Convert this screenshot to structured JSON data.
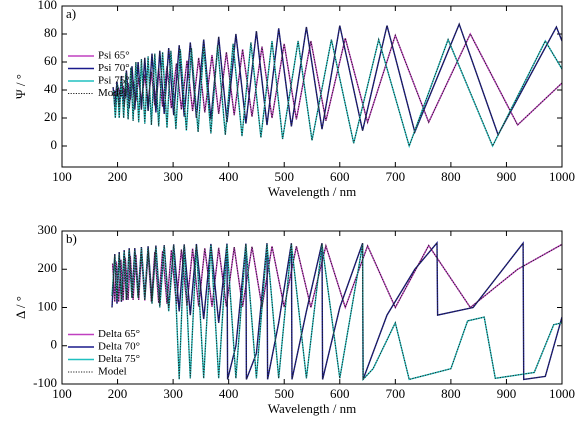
{
  "chart_data": [
    {
      "type": "line",
      "panel_label": "a)",
      "xlabel": "Wavelength / nm",
      "ylabel": "Ψ / °",
      "xlim": [
        100,
        1000
      ],
      "xticks": [
        100,
        200,
        300,
        400,
        500,
        600,
        700,
        800,
        900,
        1000
      ],
      "ylim": [
        -15,
        100
      ],
      "yticks": [
        0,
        20,
        40,
        60,
        80,
        100
      ],
      "legend": "upper left",
      "series": [
        {
          "name": "Psi 65°",
          "color": "#c040c0",
          "x": [
            191,
            195,
            198,
            202,
            206,
            210,
            214,
            219,
            223,
            228,
            233,
            238,
            243,
            249,
            255,
            261,
            267,
            274,
            281,
            289,
            297,
            306,
            315,
            325,
            335,
            346,
            357,
            370,
            382,
            396,
            410,
            425,
            442,
            460,
            478,
            500,
            522,
            548,
            575,
            610,
            650,
            700,
            760,
            835,
            920,
            1000
          ],
          "values": [
            36,
            39,
            36,
            41,
            35,
            43,
            34,
            45,
            33,
            47,
            32,
            49,
            31,
            51,
            30,
            53,
            29,
            55,
            28,
            57,
            27,
            59,
            26,
            61,
            25,
            63,
            24,
            65,
            23,
            67,
            22,
            69,
            21,
            71,
            20,
            73,
            19,
            75,
            18,
            77,
            17,
            79,
            17,
            80,
            15,
            45
          ]
        },
        {
          "name": "Psi 70°",
          "color": "#1a1a8c",
          "x": [
            192,
            195,
            199,
            203,
            207,
            212,
            216,
            221,
            226,
            231,
            237,
            243,
            249,
            255,
            262,
            269,
            276,
            284,
            292,
            301,
            311,
            320,
            331,
            342,
            355,
            368,
            382,
            397,
            413,
            431,
            450,
            469,
            490,
            513,
            540,
            568,
            600,
            641,
            685,
            735,
            815,
            885,
            990,
            1000
          ],
          "values": [
            42,
            28,
            46,
            28,
            50,
            28,
            54,
            27,
            57,
            26,
            60,
            26,
            63,
            25,
            66,
            24,
            68,
            23,
            70,
            22,
            72,
            21,
            74,
            20,
            76,
            19,
            78,
            17,
            80,
            16,
            82,
            15,
            84,
            14,
            85,
            12,
            86,
            11,
            86,
            10,
            87,
            8,
            85,
            75
          ]
        },
        {
          "name": "Psi 75°",
          "color": "#20c0c0",
          "x": [
            193,
            196,
            200,
            203,
            207,
            211,
            215,
            219,
            224,
            228,
            233,
            238,
            243,
            249,
            255,
            261,
            267,
            274,
            281,
            289,
            296,
            305,
            313,
            324,
            333,
            345,
            355,
            368,
            380,
            394,
            408,
            424,
            440,
            458,
            478,
            497,
            525,
            550,
            585,
            625,
            670,
            725,
            795,
            875,
            970,
            1000
          ],
          "values": [
            40,
            20,
            44,
            20,
            48,
            20,
            52,
            19,
            56,
            18,
            60,
            17,
            62,
            16,
            64,
            15,
            66,
            14,
            67,
            13,
            68,
            12,
            69,
            11,
            70,
            10,
            71,
            9,
            72,
            8,
            73,
            7,
            74,
            6,
            75,
            5,
            75,
            4,
            76,
            2,
            76,
            0,
            76,
            0,
            75,
            55
          ]
        },
        {
          "name": "Model",
          "color": "#222222",
          "style": "dotted"
        }
      ]
    },
    {
      "type": "line",
      "panel_label": "b)",
      "xlabel": "Wavelength / nm",
      "ylabel": "Δ / °",
      "xlim": [
        100,
        1000
      ],
      "xticks": [
        100,
        200,
        300,
        400,
        500,
        600,
        700,
        800,
        900,
        1000
      ],
      "ylim": [
        -100,
        300
      ],
      "yticks": [
        -100,
        0,
        100,
        200,
        300
      ],
      "legend": "lower left",
      "series": [
        {
          "name": "Delta 65°",
          "color": "#c040c0",
          "x": [
            191,
            195,
            198,
            202,
            206,
            210,
            214,
            219,
            223,
            228,
            233,
            238,
            243,
            249,
            255,
            261,
            267,
            274,
            281,
            289,
            297,
            306,
            315,
            325,
            335,
            346,
            357,
            370,
            382,
            396,
            410,
            425,
            442,
            460,
            478,
            500,
            522,
            548,
            575,
            610,
            650,
            700,
            760,
            835,
            920,
            1000
          ],
          "values": [
            215,
            115,
            220,
            115,
            225,
            118,
            230,
            120,
            235,
            120,
            238,
            120,
            240,
            118,
            242,
            115,
            245,
            112,
            248,
            110,
            250,
            108,
            252,
            105,
            254,
            103,
            255,
            102,
            256,
            102,
            258,
            102,
            259,
            101,
            260,
            101,
            260,
            100,
            261,
            100,
            261,
            100,
            262,
            100,
            200,
            265
          ]
        },
        {
          "name": "Delta 70°",
          "color": "#1a1a8c",
          "x": [
            190,
            195,
            199,
            203,
            207,
            212,
            216,
            221,
            226,
            231,
            237,
            243,
            249,
            255,
            262,
            269,
            276,
            284,
            292,
            301,
            311,
            320,
            331,
            342,
            355,
            368,
            382,
            397,
            398,
            413,
            431,
            432,
            450,
            469,
            470,
            490,
            513,
            514,
            540,
            568,
            569,
            600,
            641,
            642,
            685,
            735,
            775,
            776,
            840,
            930,
            931,
            970,
            1000
          ],
          "values": [
            100,
            240,
            110,
            245,
            115,
            250,
            120,
            255,
            125,
            255,
            130,
            258,
            130,
            260,
            120,
            262,
            110,
            263,
            100,
            265,
            90,
            265,
            80,
            266,
            70,
            266,
            60,
            267,
            -88,
            0,
            267,
            -88,
            -20,
            268,
            -88,
            60,
            268,
            -88,
            90,
            268,
            -88,
            100,
            268,
            -88,
            80,
            200,
            269,
            80,
            100,
            268,
            -88,
            -80,
            75
          ]
        },
        {
          "name": "Delta 75°",
          "color": "#20c0c0",
          "x": [
            190,
            195,
            199,
            203,
            207,
            212,
            216,
            221,
            226,
            231,
            237,
            243,
            249,
            255,
            262,
            269,
            276,
            284,
            292,
            301,
            311,
            320,
            331,
            342,
            355,
            368,
            382,
            397,
            413,
            431,
            450,
            469,
            490,
            513,
            540,
            568,
            600,
            641,
            642,
            660,
            700,
            725,
            760,
            800,
            830,
            860,
            880,
            950,
            985,
            1000
          ],
          "values": [
            130,
            235,
            120,
            240,
            120,
            245,
            125,
            250,
            125,
            250,
            125,
            255,
            120,
            255,
            110,
            258,
            100,
            260,
            90,
            262,
            -88,
            262,
            -85,
            263,
            -85,
            264,
            -85,
            265,
            -85,
            265,
            -85,
            265,
            -85,
            265,
            -85,
            265,
            -85,
            265,
            -88,
            -60,
            60,
            -88,
            -75,
            -60,
            65,
            75,
            -85,
            -70,
            55,
            60
          ]
        },
        {
          "name": "Model",
          "color": "#222222",
          "style": "dotted"
        }
      ]
    }
  ]
}
